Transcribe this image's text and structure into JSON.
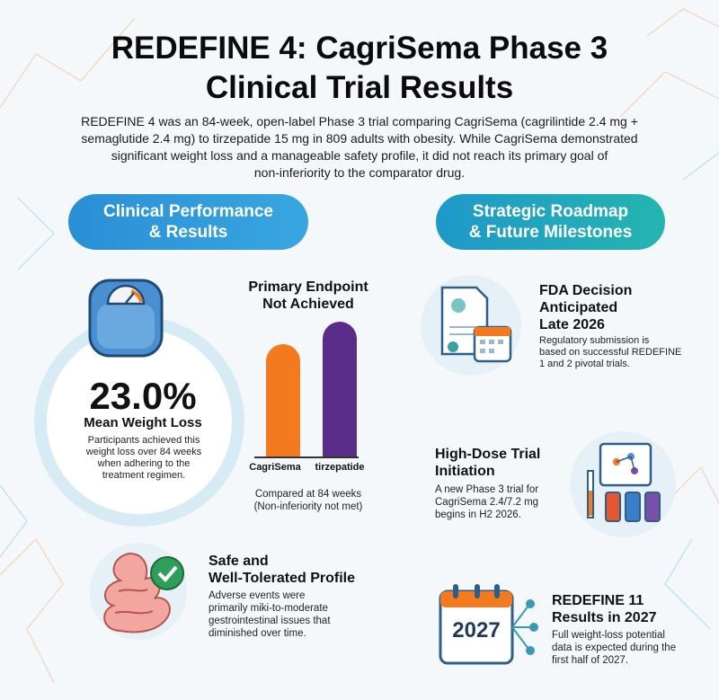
{
  "title_line1": "REDEFINE 4: CagriSema Phase 3",
  "title_line2": "Clinical Trial Results",
  "intro_line1": "REDEFINE 4 was an 84-week, open-label Phase 3 trial comparing CagriSema (cagrilintide 2.4 mg +",
  "intro_line2": "semaglutide 2.4 mg) to tirzepatide 15 mg in 809 adults with obesity. While CagriSema demonstrated",
  "intro_line3": "significant weight loss and a manageable safety profile, it did not reach its primary goal of",
  "intro_line4": "non-inferiority to the comparator drug.",
  "left_pill_line1": "Clinical Performance",
  "left_pill_line2": "& Results",
  "right_pill_line1": "Strategic Roadmap",
  "right_pill_line2": "& Future Milestones",
  "weight": {
    "value": "23.0%",
    "label": "Mean Weight Loss",
    "desc1": "Participants achieved this",
    "desc2": "weight loss over 84 weeks",
    "desc3": "when adhering to the",
    "desc4": "treatment regimen."
  },
  "endpoint": {
    "title1": "Primary Endpoint",
    "title2": "Not Achieved",
    "note1": "Compared at 84 weeks",
    "note2": "(Non-inferiority not met)"
  },
  "chart_data": {
    "type": "bar",
    "categories": [
      "CagriSema",
      "tirzepatide"
    ],
    "values": [
      0.83,
      1.0
    ],
    "colors": [
      "#f47a1f",
      "#5a2d8a"
    ]
  },
  "safety": {
    "title1": "Safe and",
    "title2": "Well-Tolerated Profile",
    "desc1": "Adverse events were",
    "desc2": "primarily miki-to-moderate",
    "desc3": "gestrointestinal issues that",
    "desc4": "diminished over time."
  },
  "fda": {
    "title1": "FDA Decision",
    "title2": "Anticipated",
    "title3": "Late 2026",
    "desc1": "Regulatory submission is",
    "desc2": "based on successful REDEFINE",
    "desc3": "1 and 2 pivotal trials."
  },
  "highdose": {
    "title1": "High-Dose Trial",
    "title2": "Initiation",
    "desc1": "A new Phase 3 trial for",
    "desc2": "CagriSema 2.4/7.2 mg",
    "desc3": "begins in H2 2026."
  },
  "redefine11": {
    "year": "2027",
    "title1": "REDEFINE 11",
    "title2": "Results in 2027",
    "desc1": "Full weight-loss potential",
    "desc2": "data is expected during the",
    "desc3": "first half of 2027."
  }
}
